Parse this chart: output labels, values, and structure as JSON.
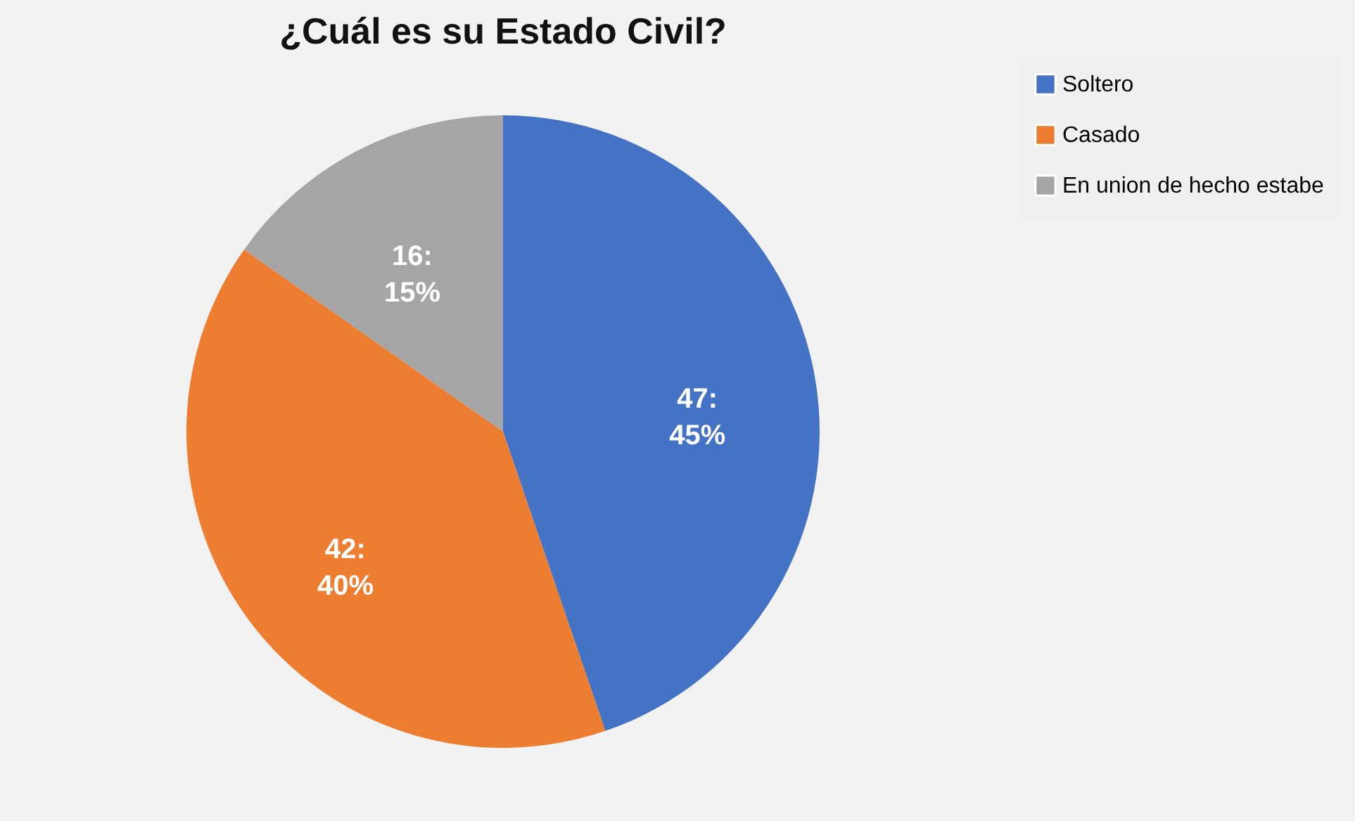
{
  "chart_data": {
    "type": "pie",
    "title": "¿Cuál es su Estado Civil?",
    "categories": [
      "Soltero",
      "Casado",
      "En union de hecho estabe"
    ],
    "values": [
      47,
      42,
      16
    ],
    "colors": [
      "#4472c4",
      "#ed7d31",
      "#a5a5a5"
    ],
    "value_labels": [
      "47:\n45%",
      "42:\n40%",
      "16:\n15%"
    ],
    "legend": "right"
  }
}
